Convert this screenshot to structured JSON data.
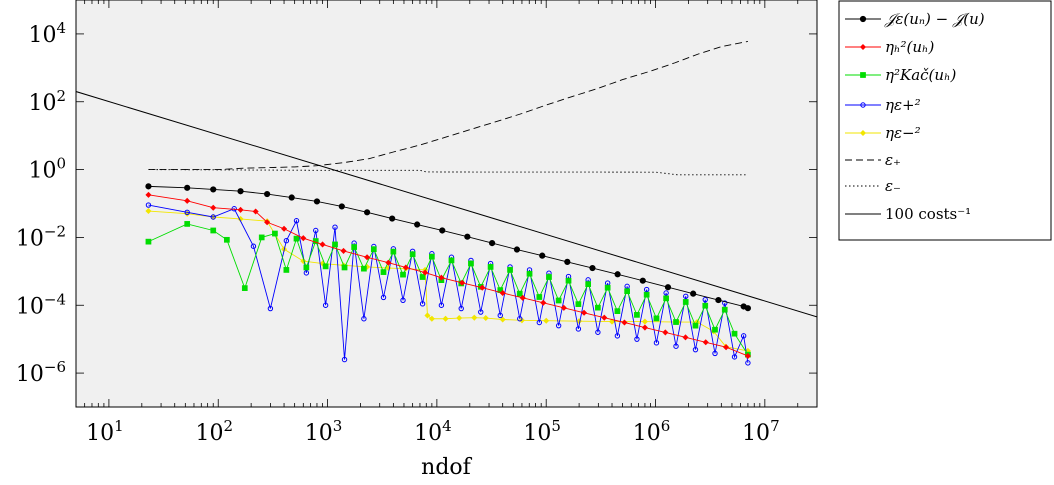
{
  "chart_data": {
    "type": "line",
    "title": "",
    "xlabel": "ndof",
    "ylabel": "",
    "xscale": "log",
    "yscale": "log",
    "xlim": [
      5,
      30000000
    ],
    "ylim": [
      1e-07,
      100000
    ],
    "xticks": [
      10,
      100,
      1000,
      10000,
      100000,
      1000000,
      10000000
    ],
    "xtick_labels": [
      {
        "base": "10",
        "exp": "1"
      },
      {
        "base": "10",
        "exp": "2"
      },
      {
        "base": "10",
        "exp": "3"
      },
      {
        "base": "10",
        "exp": "4"
      },
      {
        "base": "10",
        "exp": "5"
      },
      {
        "base": "10",
        "exp": "6"
      },
      {
        "base": "10",
        "exp": "7"
      }
    ],
    "yticks": [
      1e-06,
      0.0001,
      0.01,
      1,
      100,
      10000
    ],
    "ytick_labels": [
      {
        "base": "10",
        "exp": "−6"
      },
      {
        "base": "10",
        "exp": "−4"
      },
      {
        "base": "10",
        "exp": "−2"
      },
      {
        "base": "10",
        "exp": "0"
      },
      {
        "base": "10",
        "exp": "2"
      },
      {
        "base": "10",
        "exp": "4"
      }
    ],
    "grid": false,
    "legend_position": "outside-right",
    "background": "#f0f0f0",
    "series": [
      {
        "name": "𝒥ε(uₙ) − 𝒥(u)",
        "color": "#000000",
        "marker": "dot",
        "dash": "solid",
        "x": [
          23,
          52,
          90,
          160,
          280,
          470,
          800,
          1350,
          2300,
          3900,
          6600,
          11200,
          19000,
          32000,
          54000,
          92000,
          156000,
          265000,
          450000,
          765000,
          1300000,
          2210000,
          3760000,
          6400000,
          7000000
        ],
        "y": [
          0.32,
          0.29,
          0.26,
          0.23,
          0.19,
          0.15,
          0.115,
          0.082,
          0.055,
          0.036,
          0.024,
          0.016,
          0.0105,
          0.0068,
          0.0044,
          0.0029,
          0.0019,
          0.00125,
          0.00082,
          0.00053,
          0.00034,
          0.00022,
          0.000142,
          9.2e-05,
          8.2e-05
        ]
      },
      {
        "name": "ηₕ²(uₕ)",
        "color": "#ff0000",
        "marker": "diamond",
        "dash": "solid",
        "x": [
          23,
          52,
          90,
          160,
          220,
          280,
          400,
          600,
          900,
          1400,
          2300,
          3600,
          5200,
          7800,
          11000,
          17000,
          26000,
          40000,
          61000,
          94000,
          145000,
          222000,
          340000,
          520000,
          800000,
          1230000,
          1880000,
          2880000,
          4420000,
          7000000
        ],
        "y": [
          0.18,
          0.12,
          0.075,
          0.065,
          0.058,
          0.028,
          0.018,
          0.0095,
          0.0062,
          0.004,
          0.0026,
          0.0018,
          0.0013,
          0.00092,
          0.00065,
          0.00046,
          0.00033,
          0.00023,
          0.000165,
          0.000118,
          8.4e-05,
          6e-05,
          4.3e-05,
          3.1e-05,
          2.2e-05,
          1.58e-05,
          1.13e-05,
          8.1e-06,
          5.8e-06,
          3.2e-06
        ]
      },
      {
        "name": "η²Kač(uₕ)",
        "color": "#00dd00",
        "marker": "square",
        "dash": "solid",
        "x": [
          23,
          52,
          90,
          120,
          175,
          250,
          330,
          420,
          520,
          640,
          780,
          960,
          1170,
          1430,
          1750,
          2150,
          2650,
          3250,
          4000,
          4900,
          6000,
          7400,
          9000,
          11000,
          13600,
          16700,
          20500,
          25200,
          31000,
          38000,
          46700,
          57300,
          70400,
          86500,
          106000,
          130000,
          160000,
          197000,
          242000,
          297000,
          365000,
          448000,
          550000,
          676000,
          830000,
          1020000,
          1250000,
          1540000,
          1890000,
          2320000,
          2850000,
          3500000,
          4300000,
          5280000,
          7000000
        ],
        "y": [
          0.0075,
          0.025,
          0.016,
          0.0085,
          0.00032,
          0.01,
          0.013,
          0.0011,
          0.0092,
          0.0013,
          0.0078,
          0.0014,
          0.0062,
          0.0013,
          0.0052,
          0.0012,
          0.0045,
          0.00095,
          0.0038,
          0.0008,
          0.0032,
          0.00068,
          0.0027,
          0.00055,
          0.0021,
          0.00044,
          0.0017,
          0.00035,
          0.00135,
          0.00028,
          0.0011,
          0.00022,
          0.00085,
          0.000175,
          0.00068,
          0.000138,
          0.00053,
          0.000108,
          0.00042,
          8.5e-05,
          0.00033,
          6.7e-05,
          0.00026,
          5.2e-05,
          0.000205,
          4.1e-05,
          0.00016,
          3.2e-05,
          0.000125,
          2.5e-05,
          9.7e-05,
          1.9e-05,
          7.4e-05,
          1.45e-05,
          3.5e-06
        ]
      },
      {
        "name": "ηε+²",
        "color": "#0000ff",
        "marker": "circle",
        "dash": "solid",
        "x": [
          23,
          52,
          90,
          140,
          210,
          300,
          420,
          520,
          640,
          780,
          960,
          1170,
          1430,
          1750,
          2150,
          2650,
          3250,
          4000,
          4900,
          6000,
          7400,
          9000,
          11000,
          13600,
          16700,
          20500,
          25200,
          31000,
          38000,
          46700,
          57300,
          70400,
          86500,
          106000,
          130000,
          160000,
          197000,
          242000,
          297000,
          365000,
          448000,
          550000,
          676000,
          830000,
          1020000,
          1250000,
          1540000,
          1890000,
          2320000,
          2850000,
          3500000,
          4300000,
          5280000,
          6400000,
          7000000
        ],
        "y": [
          0.09,
          0.055,
          0.04,
          0.07,
          0.0055,
          8e-05,
          0.008,
          0.031,
          0.0009,
          0.016,
          0.0001,
          0.02,
          2.5e-06,
          0.0068,
          4e-05,
          0.0054,
          0.00017,
          0.0046,
          0.00014,
          0.0039,
          0.00011,
          0.0033,
          0.0001,
          0.0026,
          8e-05,
          0.0021,
          6.3e-05,
          0.0017,
          5e-05,
          0.00135,
          4e-05,
          0.0011,
          3.1e-05,
          0.00088,
          2.5e-05,
          0.0007,
          2e-05,
          0.00056,
          1.6e-05,
          0.00045,
          1.25e-05,
          0.00036,
          1e-05,
          0.00029,
          7.8e-06,
          0.00023,
          6.2e-06,
          0.000184,
          4.9e-06,
          0.000146,
          3.8e-06,
          0.000116,
          3e-06,
          1.25e-05,
          2e-06
        ]
      },
      {
        "name": "ηε−²",
        "color": "#f2e600",
        "marker": "diamond",
        "dash": "solid",
        "x": [
          23,
          52,
          90,
          160,
          280,
          400,
          600,
          900,
          1400,
          2300,
          3600,
          5200,
          7800,
          8200,
          9000,
          12000,
          16000,
          22000,
          28000,
          40000,
          60000,
          100000,
          200000,
          400000,
          800000,
          1600000,
          2400000,
          3400000,
          4400000,
          7000000
        ],
        "y": [
          0.06,
          0.05,
          0.04,
          0.035,
          0.03,
          0.0045,
          0.002,
          0.0017,
          0.0015,
          0.00135,
          0.00125,
          0.0012,
          0.0011,
          5e-05,
          4e-05,
          4e-05,
          4.2e-05,
          4.3e-05,
          4.2e-05,
          3.8e-05,
          3.6e-05,
          3.5e-05,
          3.4e-05,
          3.3e-05,
          3.3e-05,
          3.2e-05,
          3.2e-05,
          1.7e-05,
          6e-06,
          4.5e-06
        ]
      },
      {
        "name": "ε₊",
        "color": "#000000",
        "marker": "none",
        "dash": "dashed",
        "x": [
          23,
          100,
          170,
          300,
          500,
          800,
          1400,
          2400,
          4000,
          7000,
          12000,
          20000,
          35000,
          60000,
          100000,
          170000,
          300000,
          500000,
          900000,
          1500000,
          2500000,
          4000000,
          7000000
        ],
        "y": [
          1,
          1,
          1.1,
          1.15,
          1.2,
          1.3,
          1.6,
          2.1,
          3.3,
          5.3,
          9,
          15,
          26,
          45,
          80,
          140,
          250,
          450,
          800,
          1400,
          2600,
          4200,
          6000
        ]
      },
      {
        "name": "ε₋",
        "color": "#000000",
        "marker": "none",
        "dash": "dotted",
        "x": [
          23,
          100,
          1000,
          7000,
          8000,
          1000000,
          1600000,
          2400000,
          7000000
        ],
        "y": [
          1,
          0.98,
          0.95,
          0.95,
          0.85,
          0.84,
          0.7,
          0.7,
          0.7
        ]
      },
      {
        "name": "100 costs⁻¹",
        "color": "#000000",
        "marker": "none",
        "dash": "solid",
        "x": [
          5,
          30000000
        ],
        "y": [
          200,
          4.55e-05
        ]
      }
    ]
  },
  "legend": {
    "entries": [
      {
        "label": "𝒥ε(uₙ) − 𝒥(u)",
        "italic": true
      },
      {
        "label": "ηₕ²(uₕ)",
        "italic": true
      },
      {
        "label": "η²Kač(uₕ)",
        "italic": true
      },
      {
        "label": "ηε+²",
        "italic": true
      },
      {
        "label": "ηε−²",
        "italic": true
      },
      {
        "label": "ε₊",
        "italic": true
      },
      {
        "label": "ε₋",
        "italic": true
      },
      {
        "label": "100 costs⁻¹",
        "italic": false
      }
    ]
  }
}
